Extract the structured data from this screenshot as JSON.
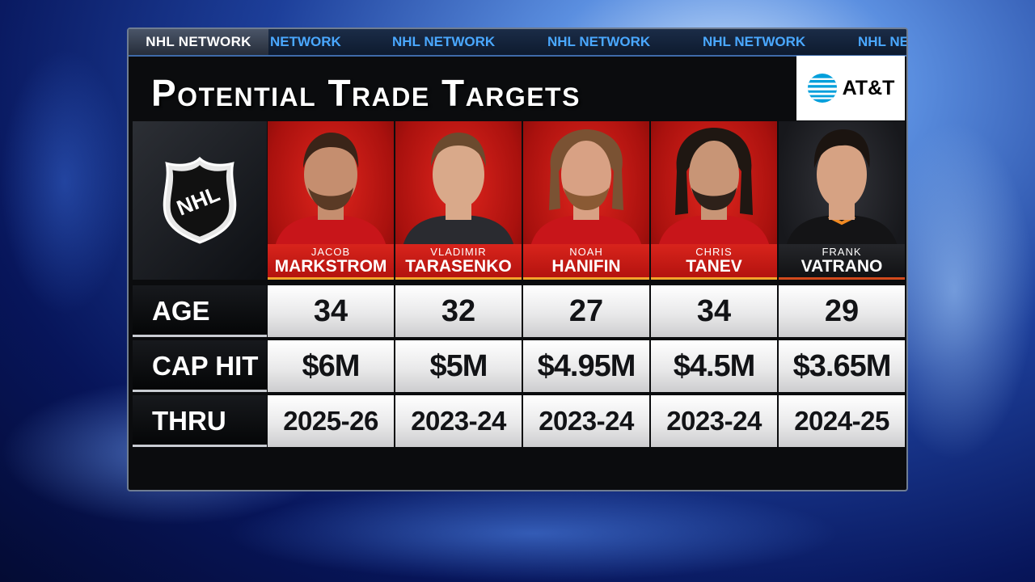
{
  "network": {
    "brand_label": "NHL NETWORK",
    "ticker_items": [
      "NETWORK",
      "NHL NETWORK",
      "NHL NETWORK",
      "NHL NETWORK",
      "NHL NE"
    ]
  },
  "graphic": {
    "title": "Potential Trade Targets",
    "sponsor": "AT&T",
    "league_logo_text": "NHL"
  },
  "row_labels": {
    "age": "AGE",
    "cap_hit": "CAP HIT",
    "thru": "THRU"
  },
  "players": [
    {
      "first": "JACOB",
      "last": "MARKSTROM",
      "age": "34",
      "cap_hit": "$6M",
      "thru": "2025-26",
      "team_color": "red"
    },
    {
      "first": "VLADIMIR",
      "last": "TARASENKO",
      "age": "32",
      "cap_hit": "$5M",
      "thru": "2023-24",
      "team_color": "red"
    },
    {
      "first": "NOAH",
      "last": "HANIFIN",
      "age": "27",
      "cap_hit": "$4.95M",
      "thru": "2023-24",
      "team_color": "red"
    },
    {
      "first": "CHRIS",
      "last": "TANEV",
      "age": "34",
      "cap_hit": "$4.5M",
      "thru": "2023-24",
      "team_color": "red"
    },
    {
      "first": "FRANK",
      "last": "VATRANO",
      "age": "29",
      "cap_hit": "$3.65M",
      "thru": "2024-25",
      "team_color": "black"
    }
  ],
  "colors": {
    "accent_red": "#d8241c",
    "ticker_blue": "#4aa8ff",
    "trim_gold": "#f3a32b"
  }
}
